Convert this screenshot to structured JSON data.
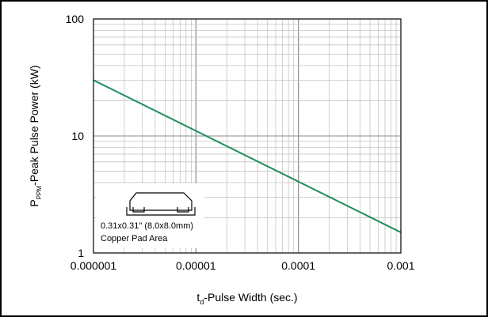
{
  "chart_data": {
    "type": "line",
    "x_scale": "log",
    "y_scale": "log",
    "xlim": [
      1e-06,
      0.001
    ],
    "ylim": [
      1,
      100
    ],
    "x_ticks": [
      {
        "value": 1e-06,
        "label": "0.000001"
      },
      {
        "value": 1e-05,
        "label": "0.00001"
      },
      {
        "value": 0.0001,
        "label": "0.0001"
      },
      {
        "value": 0.001,
        "label": "0.001"
      }
    ],
    "y_ticks": [
      {
        "value": 1,
        "label": "1"
      },
      {
        "value": 10,
        "label": "10"
      },
      {
        "value": 100,
        "label": "100"
      }
    ],
    "xlabel_main": "t",
    "xlabel_sub": "d",
    "xlabel_rest": "-Pulse Width (sec.)",
    "ylabel_main": "P",
    "ylabel_sub": "PPM",
    "ylabel_rest": "-Peak Pulse Power (kW)",
    "grid": true,
    "series": [
      {
        "color": "#1f8f5f",
        "x": [
          1e-06,
          0.001
        ],
        "y": [
          30,
          1.5
        ]
      }
    ],
    "annotation": {
      "line1": "0.31x0.31\" (8.0x8.0mm)",
      "line2": "Copper Pad Area"
    }
  }
}
